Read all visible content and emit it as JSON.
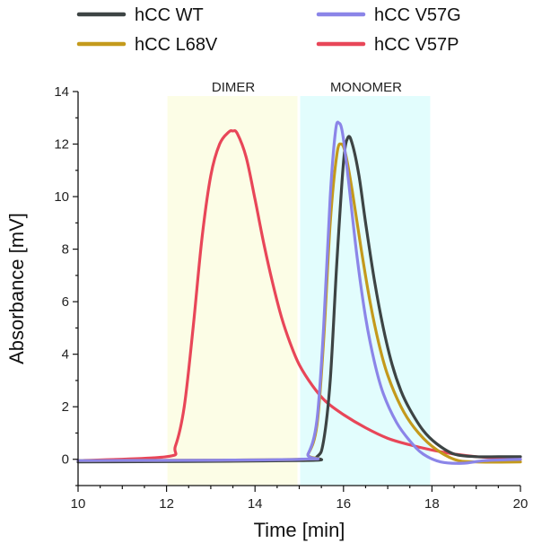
{
  "chart_data": {
    "type": "line",
    "title": "",
    "xlabel": "Time [min]",
    "ylabel": "Absorbance [mV]",
    "xlim": [
      10,
      20
    ],
    "ylim": [
      -1,
      14
    ],
    "x_ticks": [
      10,
      12,
      14,
      16,
      18,
      20
    ],
    "y_ticks": [
      0,
      2,
      4,
      6,
      8,
      10,
      12,
      14
    ],
    "grid": false,
    "legend_position": "top",
    "regions": [
      {
        "label": "DIMER",
        "x_range": [
          12,
          15
        ],
        "color": "#fcfde6"
      },
      {
        "label": "MONOMER",
        "x_range": [
          15,
          18
        ],
        "color": "#e2fdfd"
      }
    ],
    "series": [
      {
        "name": "hCC WT",
        "color": "#3d4444",
        "x": [
          10,
          15,
          15.4,
          15.55,
          15.7,
          15.85,
          16.0,
          16.1,
          16.2,
          16.35,
          16.5,
          16.7,
          16.9,
          17.1,
          17.3,
          17.5,
          17.8,
          18.1,
          18.5,
          19.0,
          19.5,
          20
        ],
        "y": [
          -0.1,
          -0.05,
          0.1,
          0.7,
          3.0,
          7.5,
          11.3,
          12.25,
          12.0,
          10.8,
          9.0,
          6.8,
          5.0,
          3.6,
          2.6,
          1.9,
          1.1,
          0.6,
          0.2,
          0.1,
          0.1,
          0.1
        ]
      },
      {
        "name": "hCC L68V",
        "color": "#c49a1c",
        "x": [
          10,
          15,
          15.2,
          15.4,
          15.55,
          15.7,
          15.85,
          15.95,
          16.05,
          16.2,
          16.4,
          16.6,
          16.8,
          17.0,
          17.3,
          17.6,
          18.0,
          18.5,
          19.0,
          20
        ],
        "y": [
          -0.05,
          0.0,
          0.2,
          1.3,
          4.5,
          9.0,
          11.6,
          12.0,
          11.6,
          10.2,
          8.0,
          6.0,
          4.4,
          3.2,
          2.0,
          1.2,
          0.5,
          0.0,
          -0.1,
          -0.1
        ]
      },
      {
        "name": "hCC V57G",
        "color": "#8b85e8",
        "x": [
          10,
          15,
          15.2,
          15.4,
          15.55,
          15.7,
          15.82,
          15.9,
          15.98,
          16.1,
          16.3,
          16.5,
          16.7,
          16.9,
          17.2,
          17.5,
          17.8,
          18.2,
          18.7,
          19.2,
          20
        ],
        "y": [
          -0.05,
          0.0,
          0.2,
          1.5,
          5.0,
          10.0,
          12.5,
          12.8,
          12.4,
          10.8,
          7.8,
          5.4,
          3.7,
          2.5,
          1.4,
          0.7,
          0.2,
          -0.1,
          -0.15,
          -0.05,
          0.0
        ]
      },
      {
        "name": "hCC V57P",
        "color": "#e84658",
        "x": [
          10,
          12,
          12.2,
          12.4,
          12.6,
          12.8,
          13.0,
          13.2,
          13.4,
          13.5,
          13.6,
          13.8,
          14.0,
          14.2,
          14.4,
          14.6,
          14.8,
          15.0,
          15.3,
          15.6,
          16.0,
          16.5,
          17.0,
          17.5,
          18.0,
          18.5,
          19.0,
          19.5,
          20
        ],
        "y": [
          -0.05,
          0.1,
          0.5,
          2.0,
          5.0,
          8.4,
          10.8,
          12.0,
          12.45,
          12.5,
          12.4,
          11.5,
          9.9,
          8.2,
          6.7,
          5.4,
          4.4,
          3.6,
          2.8,
          2.2,
          1.7,
          1.2,
          0.8,
          0.55,
          0.35,
          0.2,
          0.1,
          0.05,
          0.0
        ]
      }
    ]
  }
}
